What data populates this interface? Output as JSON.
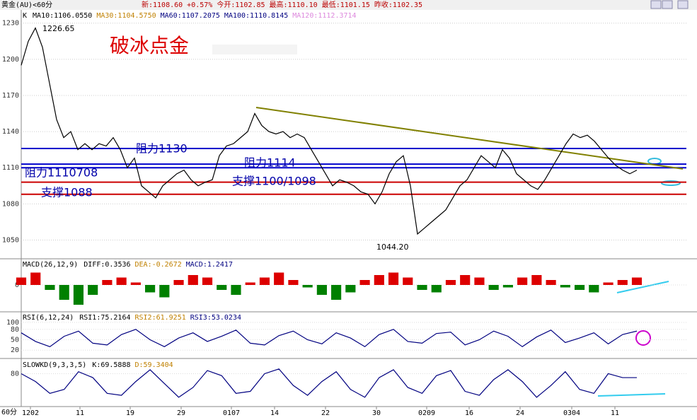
{
  "header": {
    "symbol": "黄金(AU)<60分",
    "quote": "新:1108.60 +0.57%  今开:1102.85  最高:1110.10  最低:1101.15  昨收:1102.35",
    "period": "60分"
  },
  "chart_data": [
    {
      "type": "line",
      "title": "K",
      "indicators": [
        {
          "name": "MA10:1106.0550",
          "color": "#000000"
        },
        {
          "name": "MA30:1104.5750",
          "color": "#c08000"
        },
        {
          "name": "MA60:1107.2075",
          "color": "#000080"
        },
        {
          "name": "MA100:1110.8145",
          "color": "#000080"
        },
        {
          "name": "MA120:1112.3714",
          "color": "#dd88dd"
        }
      ],
      "annotations": [
        "破冰点金",
        "阻力1130",
        "阻力1114",
        "阻力1110708",
        "支撑1100/1098",
        "支撑1088",
        "1226.65",
        "1044.20"
      ],
      "values": [
        1195,
        1215,
        1226,
        1210,
        1180,
        1150,
        1135,
        1140,
        1125,
        1130,
        1125,
        1130,
        1128,
        1135,
        1125,
        1110,
        1118,
        1095,
        1090,
        1085,
        1095,
        1100,
        1105,
        1108,
        1100,
        1095,
        1098,
        1100,
        1120,
        1128,
        1130,
        1135,
        1140,
        1155,
        1145,
        1140,
        1138,
        1140,
        1135,
        1138,
        1135,
        1125,
        1115,
        1105,
        1095,
        1100,
        1098,
        1095,
        1090,
        1088,
        1080,
        1090,
        1105,
        1115,
        1120,
        1095,
        1055,
        1060,
        1065,
        1070,
        1075,
        1085,
        1095,
        1100,
        1110,
        1120,
        1115,
        1110,
        1125,
        1118,
        1105,
        1100,
        1095,
        1092,
        1100,
        1110,
        1120,
        1130,
        1138,
        1135,
        1137,
        1132,
        1125,
        1118,
        1112,
        1108,
        1105,
        1108
      ],
      "color": "#000000",
      "levels": [
        {
          "value": 1126,
          "color": "#0000cc"
        },
        {
          "value": 1113,
          "color": "#0000cc"
        },
        {
          "value": 1110,
          "color": "#0000cc"
        },
        {
          "value": 1098,
          "color": "#cc0000"
        },
        {
          "value": 1088,
          "color": "#cc0000"
        }
      ],
      "trendline": {
        "x": [
          33.2,
          93.5
        ],
        "values": [
          1160,
          1109
        ],
        "color": "#808000"
      },
      "xlim": [
        0,
        94
      ],
      "ylim": [
        1035,
        1241
      ],
      "yticks": [
        1050,
        1080,
        1110,
        1140,
        1170,
        1200,
        1230
      ],
      "grid": true,
      "xticks": [
        {
          "value": 1.3,
          "label": "1202"
        },
        {
          "value": 8.3,
          "label": "11"
        },
        {
          "value": 15.4,
          "label": "19"
        },
        {
          "value": 22.6,
          "label": "29"
        },
        {
          "value": 29.7,
          "label": "0107"
        },
        {
          "value": 35.8,
          "label": "14"
        },
        {
          "value": 43,
          "label": "22"
        },
        {
          "value": 50.2,
          "label": "30"
        },
        {
          "value": 57.3,
          "label": "0209"
        },
        {
          "value": 63.3,
          "label": "16"
        },
        {
          "value": 70.5,
          "label": "24"
        },
        {
          "value": 77.8,
          "label": "0304"
        },
        {
          "value": 83.9,
          "label": "11"
        }
      ]
    },
    {
      "type": "bar",
      "title": "MACD(26,12,9)",
      "indicators": [
        {
          "name": "DIFF:0.3536",
          "color": "#000000"
        },
        {
          "name": "DEA:-0.2672",
          "color": "#c08000"
        },
        {
          "name": "MACD:1.2417",
          "color": "#000080"
        }
      ],
      "values": [
        3,
        5,
        -2,
        -6,
        -8,
        -4,
        2,
        3,
        1,
        -3,
        -5,
        2,
        4,
        3,
        -2,
        -4,
        1,
        3,
        5,
        2,
        -1,
        -4,
        -6,
        -3,
        2,
        4,
        5,
        3,
        -2,
        -3,
        2,
        4,
        3,
        -2,
        -1,
        3,
        4,
        2,
        -1,
        -2,
        -3,
        1,
        2,
        3
      ],
      "colors": {
        "up": "#dd0000",
        "down": "#008000"
      },
      "ylim": [
        -10,
        10
      ],
      "yticks": [
        0
      ]
    },
    {
      "type": "line",
      "title": "RSI(6,12,24)",
      "indicators": [
        {
          "name": "RSI1:75.2164",
          "color": "#000000"
        },
        {
          "name": "RSI2:61.9251",
          "color": "#c08000"
        },
        {
          "name": "RSI3:53.0234",
          "color": "#000080"
        }
      ],
      "values": [
        70,
        45,
        30,
        60,
        75,
        40,
        35,
        65,
        80,
        50,
        30,
        55,
        70,
        45,
        60,
        78,
        40,
        35,
        62,
        75,
        50,
        38,
        70,
        55,
        30,
        65,
        80,
        45,
        40,
        68,
        72,
        35,
        50,
        75,
        60,
        30,
        58,
        78,
        42,
        55,
        70,
        38,
        65,
        75
      ],
      "color": "#000080",
      "ylim": [
        0,
        100
      ],
      "yticks": [
        20,
        50,
        80,
        100
      ]
    },
    {
      "type": "line",
      "title": "SLOWKD(9,3,3,5)",
      "indicators": [
        {
          "name": "K:69.5888",
          "color": "#000000"
        },
        {
          "name": "D:59.3404",
          "color": "#c08000"
        }
      ],
      "values": [
        80,
        60,
        30,
        40,
        85,
        70,
        30,
        25,
        60,
        90,
        55,
        20,
        45,
        88,
        75,
        30,
        35,
        80,
        92,
        50,
        25,
        60,
        85,
        40,
        20,
        70,
        90,
        45,
        30,
        75,
        88,
        35,
        25,
        65,
        90,
        60,
        20,
        50,
        85,
        40,
        30,
        80,
        70,
        70
      ],
      "color": "#000080",
      "ylim": [
        0,
        115
      ],
      "yticks": [
        80
      ]
    }
  ]
}
